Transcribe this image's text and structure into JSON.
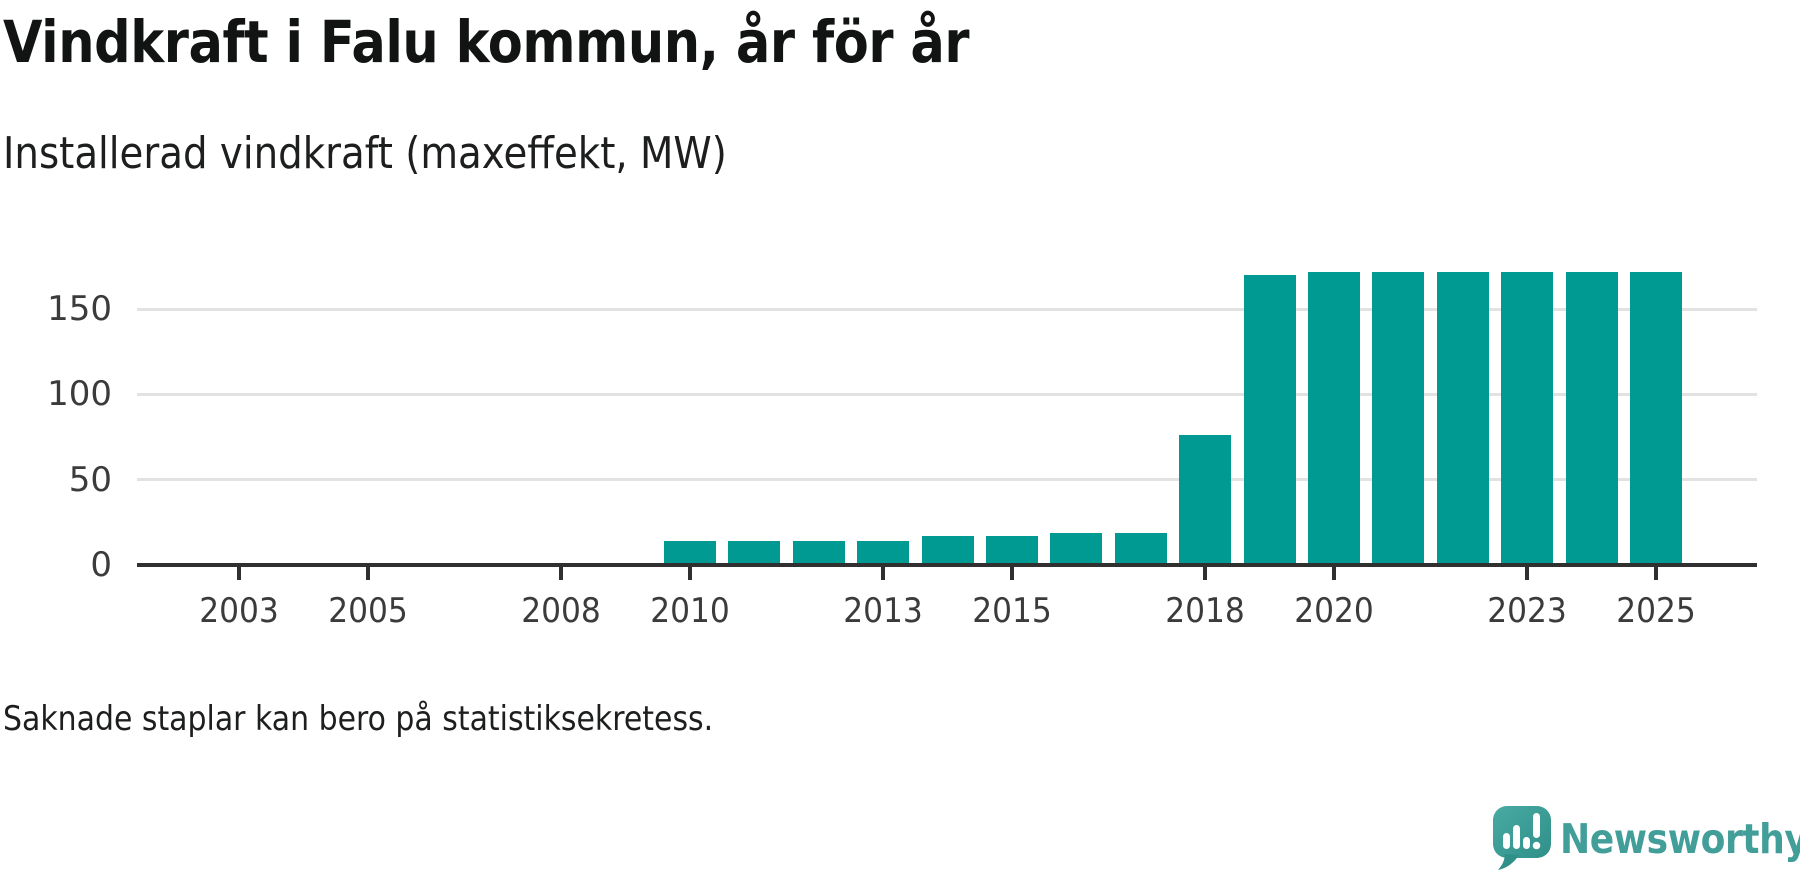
{
  "page": {
    "background": "#ffffff"
  },
  "header": {
    "title": "Vindkraft i Falu kommun, år för år",
    "subtitle": "Installerad vindkraft (maxeffekt, MW)"
  },
  "footnote": {
    "text": "Saknade staplar kan bero på statistiksekretess."
  },
  "branding": {
    "name": "Newsworthy",
    "icon": "newsworthy-speech-bubble-chart-icon",
    "text_color": "#429e99",
    "icon_color": "#3da19a"
  },
  "chart_data": {
    "type": "bar",
    "title": "Vindkraft i Falu kommun, år för år",
    "subtitle": "Installerad vindkraft (maxeffekt, MW)",
    "unit": "MW",
    "bar_color": "#009a93",
    "grid": "horizontal",
    "gridline_color": "#e2e2e2",
    "axis_color": "#303030",
    "label_color": "#3b3b3b",
    "y_ticks": [
      0,
      50,
      100,
      150
    ],
    "ylim": [
      0,
      215
    ],
    "x_range": [
      2002,
      2026
    ],
    "x_tick_labels": [
      "2003",
      "2005",
      "2008",
      "2010",
      "2013",
      "2015",
      "2018",
      "2020",
      "2023",
      "2025"
    ],
    "years": [
      2010,
      2011,
      2012,
      2013,
      2014,
      2015,
      2016,
      2017,
      2018,
      2019,
      2020,
      2021,
      2022,
      2023,
      2024,
      2025
    ],
    "values": [
      14,
      14,
      14,
      14,
      17,
      17,
      19,
      19,
      76,
      170,
      172,
      172,
      172,
      172,
      172,
      172
    ],
    "legend": null
  }
}
